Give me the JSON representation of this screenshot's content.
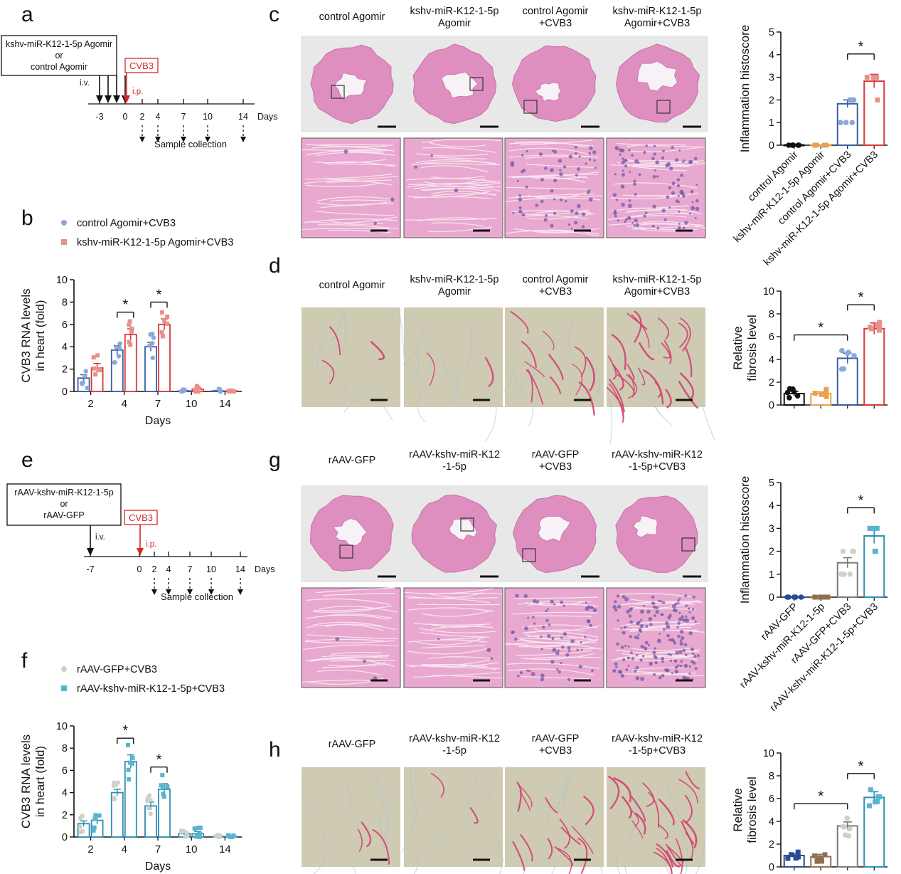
{
  "panel_letters": [
    "a",
    "b",
    "c",
    "d",
    "e",
    "f",
    "g",
    "h"
  ],
  "panel_a": {
    "treatment_box": [
      "kshv-miR-K12-1-5p Agomir",
      "or",
      "control Agomir"
    ],
    "route_treatment": "i.v.",
    "virus_box": "CVB3",
    "route_virus": "i.p.",
    "timeline_ticks": [
      "-3",
      "0",
      "2",
      "4",
      "7",
      "10",
      "14"
    ],
    "days_label": "Days",
    "collection_label": "Sample collection"
  },
  "panel_e": {
    "treatment_box": [
      "rAAV-kshv-miR-K12-1-5p",
      "or",
      "rAAV-GFP"
    ],
    "route_treatment": "i.v.",
    "virus_box": "CVB3",
    "route_virus": "i.p.",
    "timeline_ticks": [
      "-7",
      "0",
      "2",
      "4",
      "7",
      "10",
      "14"
    ],
    "days_label": "Days",
    "collection_label": "Sample collection"
  },
  "panel_c": {
    "columns": [
      [
        "control Agomir"
      ],
      [
        "kshv-miR-K12-1-5p",
        "Agomir"
      ],
      [
        "control Agomir",
        "+CVB3"
      ],
      [
        "kshv-miR-K12-1-5p",
        "Agomir+CVB3"
      ]
    ]
  },
  "panel_d": {
    "columns": [
      [
        "control Agomir"
      ],
      [
        "kshv-miR-K12-1-5p",
        "Agomir"
      ],
      [
        "control Agomir",
        "+CVB3"
      ],
      [
        "kshv-miR-K12-1-5p",
        "Agomir+CVB3"
      ]
    ]
  },
  "panel_g": {
    "columns": [
      [
        "rAAV-GFP"
      ],
      [
        "rAAV-kshv-miR-K12",
        "-1-5p"
      ],
      [
        "rAAV-GFP",
        "+CVB3"
      ],
      [
        "rAAV-kshv-miR-K12",
        "-1-5p+CVB3"
      ]
    ]
  },
  "panel_h": {
    "columns": [
      [
        "rAAV-GFP"
      ],
      [
        "rAAV-kshv-miR-K12",
        "-1-5p"
      ],
      [
        "rAAV-GFP",
        "+CVB3"
      ],
      [
        "rAAV-kshv-miR-K12",
        "-1-5p+CVB3"
      ]
    ]
  },
  "significance_marker": "*",
  "colors": {
    "black": "#111111",
    "orange": "#e8a14e",
    "blue": "#3a5fa0",
    "blue_light": "#89a9d9",
    "red": "#d93a3a",
    "red_light": "#e8908a",
    "gray": "#7a7a7a",
    "beige": "#d9d2c3",
    "teal": "#2e8fb2",
    "teal_light": "#5ab4cf",
    "navy": "#2a4a94",
    "brown": "#8f7050",
    "he_pink": "#e9a8cf",
    "he_tissue": "#de8fc0",
    "sirius_bg": "#cfcab2"
  },
  "chart_data": [
    {
      "id": "b",
      "type": "bar",
      "categories": [
        "2",
        "4",
        "7",
        "10",
        "14"
      ],
      "xlabel": "Days",
      "ylabel": "CVB3 RNA levels\nin heart (fold)",
      "ylim": [
        0,
        10
      ],
      "yticks": [
        "0",
        "2",
        "4",
        "6",
        "8",
        "10"
      ],
      "legend_position": "top-left",
      "series": [
        {
          "name": "control Agomir+CVB3",
          "values": [
            1.2,
            3.7,
            4.0,
            0.05,
            0.05
          ],
          "sem": [
            0.3,
            0.4,
            0.4,
            0.03,
            0.02
          ]
        },
        {
          "name": "kshv-miR-K12-1-5p Agomir+CVB3",
          "values": [
            2.1,
            5.1,
            6.0,
            0.2,
            0.05
          ],
          "sem": [
            0.4,
            0.5,
            0.5,
            0.1,
            0.02
          ]
        }
      ],
      "significance": [
        "4",
        "7"
      ]
    },
    {
      "id": "c",
      "type": "bar",
      "categories": [
        "control Agomir",
        "kshv-miR-K12-1-5p Agomir",
        "control Agomir+CVB3",
        "kshv-miR-K12-1-5p Agomir+CVB3"
      ],
      "ylabel": "Inflammation histoscore",
      "ylim": [
        0,
        5
      ],
      "yticks": [
        "0",
        "1",
        "2",
        "3",
        "4",
        "5"
      ],
      "values": [
        0,
        0,
        1.83,
        2.83
      ],
      "sem": [
        0,
        0,
        0.17,
        0.3
      ],
      "significance": [
        [
          2,
          3
        ]
      ]
    },
    {
      "id": "d",
      "type": "bar",
      "categories": [
        "control Agomir",
        "kshv-miR-K12-1-5p Agomir",
        "control Agomir+CVB3",
        "kshv-miR-K12-1-5p Agomir+CVB3"
      ],
      "ylabel": "Relative\nfibrosis level",
      "ylim": [
        0,
        10
      ],
      "yticks": [
        "0",
        "2",
        "4",
        "6",
        "8",
        "10"
      ],
      "values": [
        1.0,
        1.0,
        4.1,
        6.7
      ],
      "sem": [
        0.2,
        0.15,
        0.45,
        0.5
      ],
      "significance": [
        [
          0,
          2
        ],
        [
          2,
          3
        ]
      ]
    },
    {
      "id": "f",
      "type": "bar",
      "categories": [
        "2",
        "4",
        "7",
        "10",
        "14"
      ],
      "xlabel": "Days",
      "ylabel": "CVB3 RNA levels\nin heart (fold)",
      "ylim": [
        0,
        10
      ],
      "yticks": [
        "0",
        "2",
        "4",
        "6",
        "8",
        "10"
      ],
      "legend_position": "top-left",
      "series": [
        {
          "name": "rAAV-GFP+CVB3",
          "values": [
            1.2,
            4.0,
            2.8,
            0.3,
            0.05
          ],
          "sem": [
            0.25,
            0.3,
            0.35,
            0.1,
            0.02
          ]
        },
        {
          "name": "rAAV-kshv-miR-K12-1-5p+CVB3",
          "values": [
            1.5,
            6.8,
            4.3,
            0.3,
            0.05
          ],
          "sem": [
            0.35,
            0.6,
            0.5,
            0.2,
            0.02
          ]
        }
      ],
      "significance": [
        "4",
        "7"
      ]
    },
    {
      "id": "g",
      "type": "bar",
      "categories": [
        "rAAV-GFP",
        "rAAV-kshv-miR-K12-1-5p",
        "rAAV-GFP+CVB3",
        "rAAV-kshv-miR-K12-1-5p+CVB3"
      ],
      "ylabel": "Inflammation histoscore",
      "ylim": [
        0,
        5
      ],
      "yticks": [
        "0",
        "1",
        "2",
        "3",
        "4",
        "5"
      ],
      "values": [
        0,
        0,
        1.5,
        2.67
      ],
      "sem": [
        0,
        0,
        0.22,
        0.33
      ],
      "significance": [
        [
          2,
          3
        ]
      ]
    },
    {
      "id": "h",
      "type": "bar",
      "categories": [
        "rAAV-GFP",
        "rAAV-kshv-miR-K12-1-5p",
        "rAAV-GFP+CVB3",
        "rAAV-kshv-miR-K12-1-5p+CVB3"
      ],
      "ylabel": "Relative\nfibrosis level",
      "ylim": [
        0,
        10
      ],
      "yticks": [
        "0",
        "2",
        "4",
        "6",
        "8",
        "10"
      ],
      "values": [
        1.0,
        0.9,
        3.6,
        6.1
      ],
      "sem": [
        0.15,
        0.2,
        0.35,
        0.5
      ],
      "significance": [
        [
          0,
          2
        ],
        [
          2,
          3
        ]
      ]
    }
  ]
}
